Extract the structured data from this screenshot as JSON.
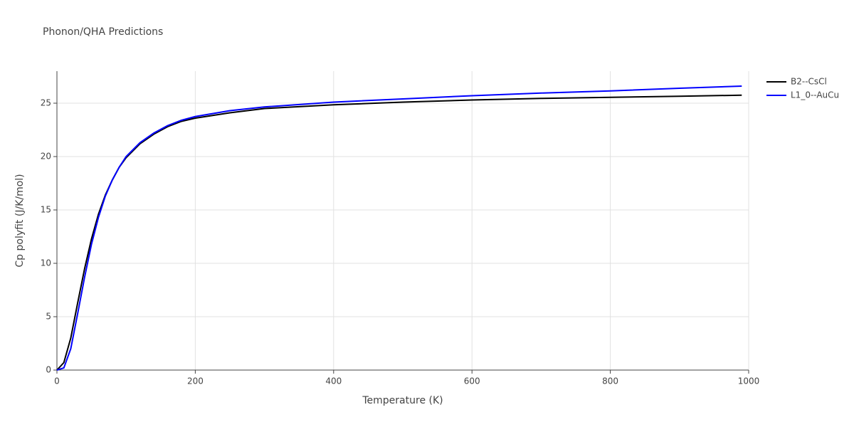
{
  "chart_data": {
    "type": "line",
    "title": "Phonon/QHA Predictions",
    "x_label": "Temperature (K)",
    "y_label": "Cp polyfit (J/K/mol)",
    "xlim": [
      0,
      1000
    ],
    "xticks": [
      0,
      200,
      400,
      600,
      800,
      1000
    ],
    "ylim": [
      0,
      28
    ],
    "yticks": [
      0,
      5,
      10,
      15,
      20,
      25
    ],
    "grid": true,
    "x": [
      0,
      10,
      20,
      30,
      40,
      50,
      60,
      70,
      80,
      90,
      100,
      120,
      140,
      160,
      180,
      200,
      250,
      300,
      400,
      500,
      600,
      700,
      800,
      900,
      990
    ],
    "series": [
      {
        "name": "B2--CsCl",
        "color": "#000000",
        "values": [
          0,
          0.7,
          3,
          6.3,
          9.5,
          12.3,
          14.6,
          16.4,
          17.8,
          19.0,
          19.9,
          21.2,
          22.1,
          22.8,
          23.3,
          23.6,
          24.1,
          24.5,
          24.85,
          25.1,
          25.3,
          25.45,
          25.55,
          25.65,
          25.75
        ]
      },
      {
        "name": "L1_0--AuCu",
        "color": "#0000ff",
        "values": [
          0,
          0.2,
          2.0,
          5.3,
          8.7,
          11.8,
          14.3,
          16.3,
          17.8,
          19.0,
          20.0,
          21.3,
          22.2,
          22.9,
          23.4,
          23.75,
          24.3,
          24.65,
          25.1,
          25.4,
          25.7,
          25.95,
          26.15,
          26.4,
          26.6
        ]
      }
    ]
  }
}
